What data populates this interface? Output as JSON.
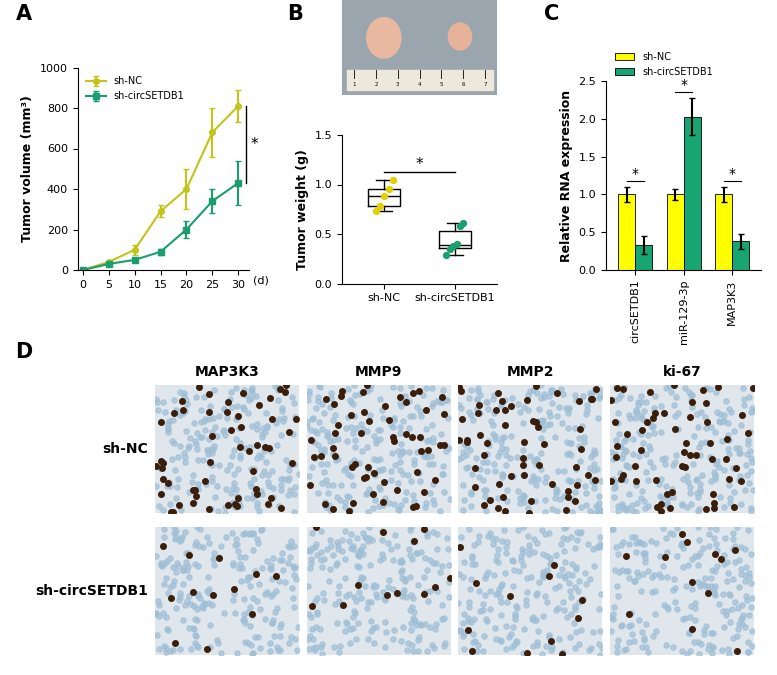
{
  "panel_labels": [
    "A",
    "B",
    "C",
    "D"
  ],
  "chart_data": [
    {
      "type": "line",
      "ylabel": "Tumor volume (mm³)",
      "xlabel": "(d)",
      "x": [
        0,
        5,
        10,
        15,
        20,
        25,
        30
      ],
      "series": [
        {
          "name": "sh-NC",
          "color": "#c3c31a",
          "marker": "o",
          "line_style": "solid",
          "values": [
            0,
            40,
            100,
            290,
            400,
            680,
            810
          ],
          "errors": [
            0,
            5,
            25,
            30,
            100,
            120,
            80
          ]
        },
        {
          "name": "sh-circSETDB1",
          "color": "#1a9e6e",
          "marker": "s",
          "line_style": "solid",
          "values": [
            0,
            30,
            50,
            90,
            200,
            340,
            430
          ],
          "errors": [
            0,
            5,
            10,
            15,
            40,
            60,
            110
          ]
        }
      ],
      "xlim": [
        -1,
        32
      ],
      "xticks": [
        0,
        5,
        10,
        15,
        20,
        25,
        30
      ],
      "ylim": [
        0,
        1000
      ],
      "yticks": [
        0,
        200,
        400,
        600,
        800,
        1000
      ],
      "legend": "upper left",
      "annotations": [
        "*"
      ]
    },
    {
      "type": "box",
      "ylabel": "Tumor weight (g)",
      "categories": [
        "sh-NC",
        "sh-circSETDB1"
      ],
      "colors": [
        "#e3cf00",
        "#1aa070"
      ],
      "points": [
        [
          0.73,
          0.78,
          0.88,
          0.95,
          1.05
        ],
        [
          0.29,
          0.35,
          0.38,
          0.4,
          0.58,
          0.61
        ]
      ],
      "ylim": [
        0,
        1.5
      ],
      "yticks": [
        {
          "value": 0,
          "label": "0.0"
        },
        {
          "value": 0.5,
          "label": "0.5"
        },
        {
          "value": 1,
          "label": "1.0"
        },
        {
          "value": 1.5,
          "label": "1.5"
        }
      ],
      "annotations": [
        "*"
      ],
      "photo_ruler_labels": [
        "1",
        "2",
        "3",
        "4",
        "5",
        "6",
        "7"
      ]
    },
    {
      "type": "bar",
      "ylabel": "Relative RNA expression",
      "categories": [
        "circSETDB1",
        "miR-129-3p",
        "MAP3K3"
      ],
      "series": [
        {
          "name": "sh-NC",
          "color": "#ffff00",
          "values": [
            1.0,
            1.0,
            1.0
          ],
          "errors": [
            0.1,
            0.07,
            0.1
          ]
        },
        {
          "name": "sh-circSETDB1",
          "color": "#17a673",
          "values": [
            0.33,
            2.03,
            0.38
          ],
          "errors": [
            0.12,
            0.25,
            0.1
          ]
        }
      ],
      "ylim": [
        0,
        2.5
      ],
      "yticks": [
        {
          "value": 0,
          "label": "0.0"
        },
        {
          "value": 0.5,
          "label": "0.5"
        },
        {
          "value": 1,
          "label": "1.0"
        },
        {
          "value": 1.5,
          "label": "1.5"
        },
        {
          "value": 2,
          "label": "2.0"
        },
        {
          "value": 2.5,
          "label": "2.5"
        }
      ],
      "legend": "upper left",
      "annotations": [
        "*",
        "*",
        "*"
      ]
    }
  ],
  "image_grid": {
    "columns": [
      "MAP3K3",
      "MMP9",
      "MMP2",
      "ki-67"
    ],
    "rows": [
      "sh-NC",
      "sh-circSETDB1"
    ]
  }
}
